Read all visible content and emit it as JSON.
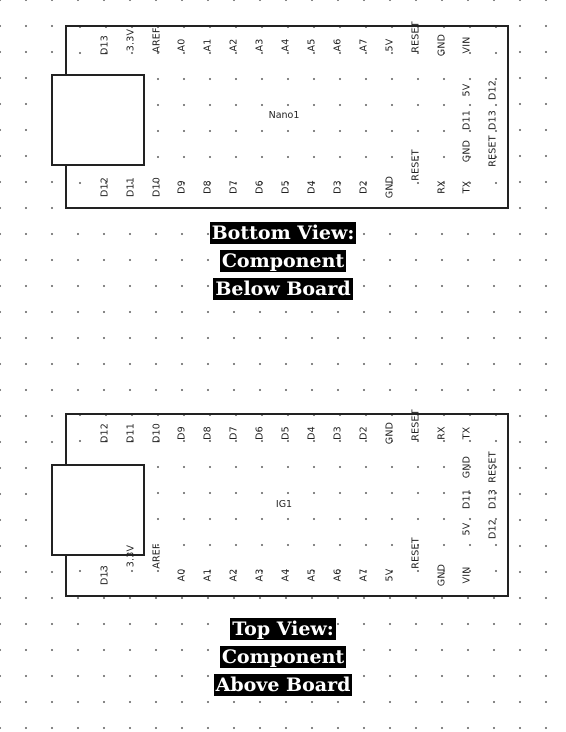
{
  "bottom": {
    "name": "Nano1",
    "top_pins": [
      "D13",
      "3.3V",
      "AREF",
      "A0",
      "A1",
      "A2",
      "A3",
      "A4",
      "A5",
      "A6",
      "A7",
      "5V",
      "RESET",
      "GND",
      "VIN"
    ],
    "bottom_pins": [
      "D12",
      "D11",
      "D10",
      "D9",
      "D8",
      "D7",
      "D6",
      "D5",
      "D4",
      "D3",
      "D2",
      "GND",
      "RESET",
      "RX",
      "TX"
    ],
    "icsp_pins": [
      "5V",
      "D12",
      "D11",
      "D13",
      "GND",
      "RESET"
    ],
    "caption": [
      "Bottom View:",
      "Component",
      "Below Board"
    ]
  },
  "top": {
    "name": "IG1",
    "top_pins": [
      "D12",
      "D11",
      "D10",
      "D9",
      "D8",
      "D7",
      "D6",
      "D5",
      "D4",
      "D3",
      "D2",
      "GND",
      "RESET",
      "RX",
      "TX"
    ],
    "bottom_pins": [
      "D13",
      "3.3V",
      "AREF",
      "A0",
      "A1",
      "A2",
      "A3",
      "A4",
      "A5",
      "A6",
      "A7",
      "5V",
      "RESET",
      "GND",
      "VIN"
    ],
    "icsp_pins": [
      "GND",
      "RESET",
      "D11",
      "D13",
      "5V",
      "D12"
    ],
    "caption": [
      "Top View:",
      "Component",
      "Above Board"
    ]
  }
}
